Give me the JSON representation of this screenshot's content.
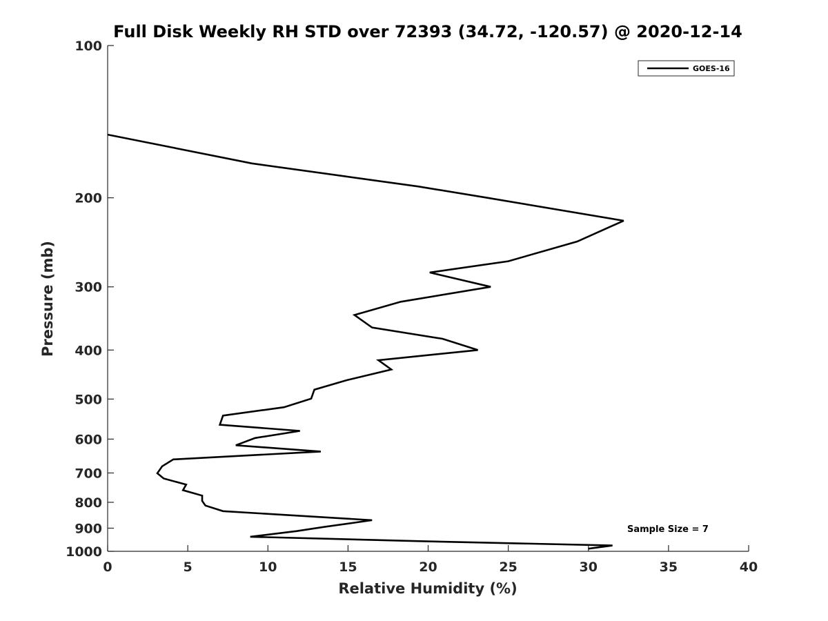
{
  "chart_data": {
    "type": "line",
    "title": "Full Disk Weekly RH STD over 72393 (34.72, -120.57) @ 2020-12-14",
    "xlabel": "Relative Humidity (%)",
    "ylabel": "Pressure (mb)",
    "xlim": [
      0,
      40
    ],
    "ylim": [
      100,
      1000
    ],
    "y_scale": "log",
    "y_reversed": true,
    "x_ticks": [
      0,
      5,
      10,
      15,
      20,
      25,
      30,
      35,
      40
    ],
    "y_ticks": [
      100,
      200,
      300,
      400,
      500,
      600,
      700,
      800,
      900,
      1000
    ],
    "grid": false,
    "legend_position": "top-right",
    "series": [
      {
        "name": "GOES-16",
        "color": "#000000",
        "x": [
          0,
          9,
          19.4,
          23.7,
          32.2,
          29.3,
          25,
          20.1,
          23.9,
          18.3,
          15.4,
          16.5,
          20.9,
          23.1,
          16.9,
          17.7,
          14.9,
          12.9,
          12.7,
          11,
          7.2,
          7.0,
          12.0,
          9.2,
          8.0,
          13.3,
          4.1,
          3.4,
          3.1,
          3.5,
          4.9,
          4.7,
          5.9,
          5.9,
          6.1,
          7.2,
          16.5,
          13.5,
          11.8,
          8.9,
          19.5,
          31.5,
          30
        ],
        "y": [
          150,
          171,
          190,
          200,
          222,
          244,
          267,
          281,
          300,
          321,
          341,
          361,
          380,
          400,
          419,
          437,
          459,
          479,
          499,
          519,
          539,
          562,
          578,
          597,
          617,
          635,
          658,
          679,
          701,
          718,
          738,
          757,
          776,
          795,
          812,
          833,
          868,
          895,
          912,
          936,
          955,
          974,
          988
        ]
      }
    ],
    "annotations": [
      "Sample Size = 7"
    ]
  }
}
